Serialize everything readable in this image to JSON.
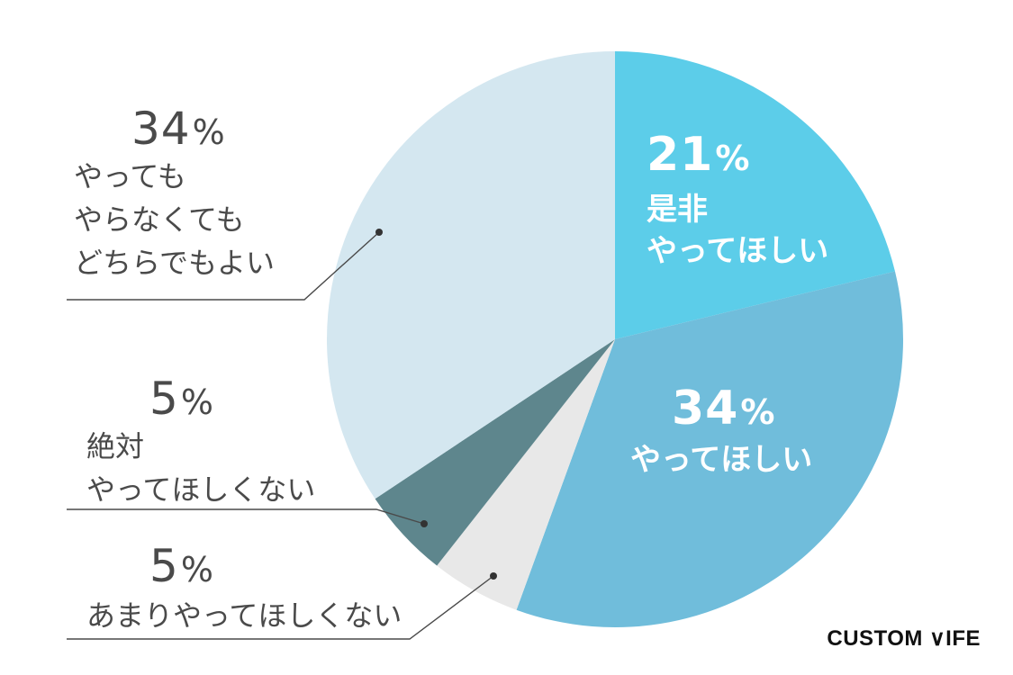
{
  "chart_data": {
    "type": "pie",
    "title": "",
    "slices": [
      {
        "pct": "21",
        "unit": "%",
        "lines": [
          "是非",
          "やってほしい"
        ],
        "value": 21,
        "color": "#5ccde9"
      },
      {
        "pct": "34",
        "unit": "%",
        "lines": [
          "やってほしい"
        ],
        "value": 34,
        "color": "#70bddb"
      },
      {
        "pct": "5",
        "unit": "%",
        "lines": [
          "あまりやってほしくない"
        ],
        "value": 5,
        "color": "#e8e8e8"
      },
      {
        "pct": "5",
        "unit": "%",
        "lines": [
          "絶対",
          "やってほしくない"
        ],
        "value": 5,
        "color": "#5e868d"
      },
      {
        "pct": "34",
        "unit": "%",
        "lines": [
          "やっても",
          "やらなくても",
          "どちらでもよい"
        ],
        "value": 34,
        "color": "#d4e7f0"
      }
    ]
  },
  "brand": {
    "logo_text": "CUSTOM ∨IFE"
  }
}
